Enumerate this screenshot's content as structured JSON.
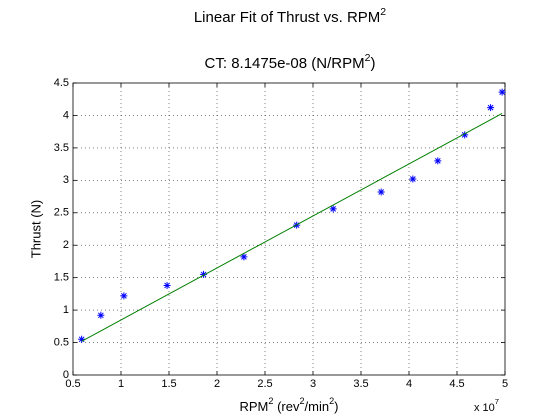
{
  "chart_data": {
    "type": "scatter",
    "title": [
      "Linear Fit of Thrust vs. RPM",
      "2"
    ],
    "subtitle": [
      "CT: 8.1475e-08 (N/RPM",
      "2",
      ")"
    ],
    "x_label": [
      "RPM",
      "2",
      " (rev",
      "2",
      "/min",
      "2",
      ")"
    ],
    "y_label": "Thrust (N)",
    "x_multiplier": [
      "x 10",
      "7"
    ],
    "series": [
      {
        "type": "scatter",
        "marker": "*",
        "color": "#0000ff",
        "x": [
          0.59,
          0.79,
          1.03,
          1.48,
          1.86,
          2.28,
          2.83,
          3.21,
          3.71,
          4.04,
          4.3,
          4.58,
          4.85,
          4.97
        ],
        "values": [
          0.55,
          0.92,
          1.22,
          1.38,
          1.55,
          1.82,
          2.31,
          2.56,
          2.82,
          3.02,
          3.3,
          3.7,
          4.12,
          4.36
        ]
      },
      {
        "type": "line",
        "color": "#008000",
        "x": [
          0.59,
          4.97
        ],
        "values": [
          0.52,
          4.03
        ]
      }
    ],
    "xlim": [
      0.5,
      5
    ],
    "xticks": [
      0.5,
      1,
      1.5,
      2,
      2.5,
      3,
      3.5,
      4,
      4.5,
      5
    ],
    "ylim": [
      0,
      4.5
    ],
    "yticks": [
      0,
      0.5,
      1,
      1.5,
      2,
      2.5,
      3,
      3.5,
      4,
      4.5
    ],
    "grid": true
  }
}
